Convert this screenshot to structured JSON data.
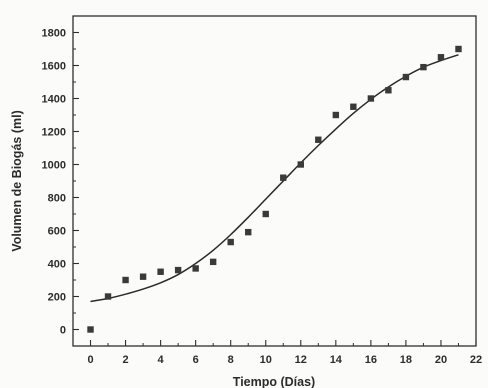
{
  "chart_data": {
    "type": "scatter",
    "xlabel": "Tiempo (Días)",
    "ylabel": "Volumen de Biogás (ml)",
    "xlim": [
      -1,
      22
    ],
    "ylim": [
      -100,
      1900
    ],
    "x_ticks": [
      0,
      2,
      4,
      6,
      8,
      10,
      12,
      14,
      16,
      18,
      20,
      22
    ],
    "y_ticks": [
      0,
      200,
      400,
      600,
      800,
      1000,
      1200,
      1400,
      1600,
      1800
    ],
    "grid": false,
    "legend": "none",
    "series": [
      {
        "kind": "points",
        "marker": "square",
        "color": "#3a3a3a",
        "x": [
          0,
          1,
          2,
          3,
          4,
          5,
          6,
          7,
          8,
          9,
          10,
          11,
          12,
          13,
          14,
          15,
          16,
          17,
          18,
          19,
          20,
          21
        ],
        "y": [
          0,
          200,
          300,
          320,
          350,
          360,
          370,
          410,
          530,
          590,
          700,
          920,
          1000,
          1150,
          1300,
          1350,
          1400,
          1450,
          1530,
          1590,
          1650,
          1700
        ]
      },
      {
        "kind": "fit-curve",
        "color": "#2a2a2a",
        "x": [
          0,
          1,
          2,
          3,
          4,
          5,
          6,
          7,
          8,
          9,
          10,
          11,
          12,
          13,
          14,
          15,
          16,
          17,
          18,
          19,
          20,
          21
        ],
        "y": [
          170,
          188,
          214,
          245,
          283,
          333,
          400,
          480,
          575,
          680,
          790,
          900,
          1010,
          1115,
          1215,
          1310,
          1395,
          1470,
          1535,
          1590,
          1630,
          1665
        ]
      }
    ]
  }
}
